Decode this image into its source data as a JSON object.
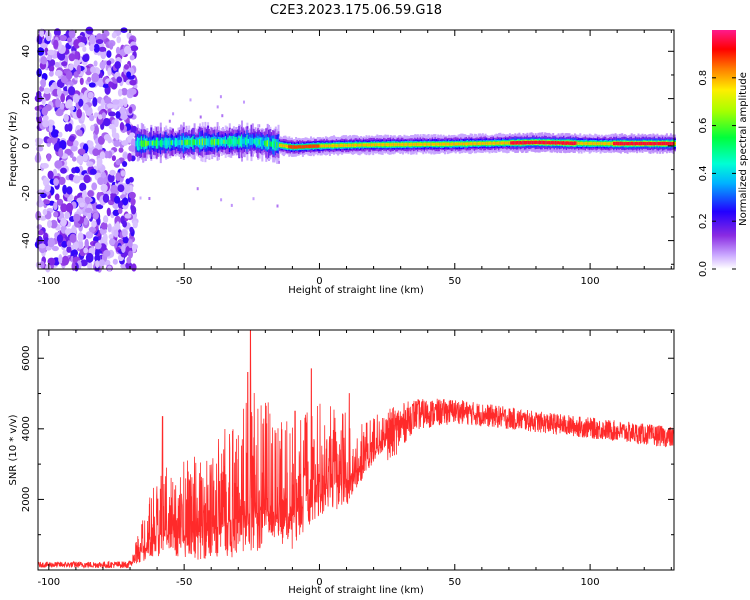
{
  "title": "C2E3.2023.175.06.59.G18",
  "chart_data": [
    {
      "type": "heatmap",
      "xlabel": "Height of straight line (km)",
      "ylabel": "Frequency (Hz)",
      "xlim": [
        -104,
        131
      ],
      "ylim": [
        -52,
        49
      ],
      "xticks": [
        -100,
        -50,
        0,
        50,
        100
      ],
      "yticks": [
        -40,
        -20,
        0,
        20,
        40
      ],
      "colorbar": {
        "label": "Normalized spectral amplitude",
        "range": [
          0,
          1
        ],
        "ticks": [
          0.0,
          0.2,
          0.4,
          0.6,
          0.8
        ],
        "tick_labels": [
          "0.0",
          "0.2",
          "0.4",
          "0.6",
          "0.8"
        ],
        "colormap": [
          "#ffffff",
          "#9b30ff",
          "#0000ff",
          "#00e5ff",
          "#00ff66",
          "#a6ff00",
          "#ffff00",
          "#ff8000",
          "#ff0000",
          "#ff1493"
        ]
      },
      "regions": [
        {
          "x": [
            -104,
            -68
          ],
          "freq_range": [
            -52,
            49
          ],
          "amplitude": "0.0-0.2 scattered"
        },
        {
          "x": [
            -68,
            -15
          ],
          "freq_center": 2,
          "freq_halfwidth": 7,
          "amplitude": "0.2-0.6"
        },
        {
          "x": [
            -15,
            131
          ],
          "freq_center": 1,
          "freq_halfwidth": 3,
          "amplitude": "0.3-0.9"
        }
      ],
      "ridge": [
        {
          "x": -68,
          "f": 1
        },
        {
          "x": -50,
          "f": 1.5
        },
        {
          "x": -25,
          "f": 2
        },
        {
          "x": -10,
          "f": -0.5
        },
        {
          "x": 0,
          "f": 0
        },
        {
          "x": 20,
          "f": 0.5
        },
        {
          "x": 50,
          "f": 0.8
        },
        {
          "x": 80,
          "f": 1.5
        },
        {
          "x": 100,
          "f": 1
        },
        {
          "x": 131,
          "f": 1
        }
      ]
    },
    {
      "type": "line",
      "xlabel": "Height of straight line (km)",
      "ylabel": "SNR (10 * v/v)",
      "xlim": [
        -104,
        131
      ],
      "ylim": [
        0,
        6800
      ],
      "xticks": [
        -100,
        -50,
        0,
        50,
        100
      ],
      "yticks": [
        2000,
        4000,
        6000
      ],
      "color": "#ff2a2a",
      "envelope": [
        {
          "x": -104,
          "base": 150,
          "spread": 80
        },
        {
          "x": -70,
          "base": 150,
          "spread": 100
        },
        {
          "x": -60,
          "base": 1000,
          "spread": 1800
        },
        {
          "x": -40,
          "base": 1100,
          "spread": 2500
        },
        {
          "x": -25,
          "base": 1700,
          "spread": 3500
        },
        {
          "x": -10,
          "base": 1500,
          "spread": 2600
        },
        {
          "x": 0,
          "base": 2400,
          "spread": 2400
        },
        {
          "x": 10,
          "base": 2500,
          "spread": 2000
        },
        {
          "x": 20,
          "base": 3400,
          "spread": 1000
        },
        {
          "x": 35,
          "base": 4400,
          "spread": 450
        },
        {
          "x": 50,
          "base": 4500,
          "spread": 350
        },
        {
          "x": 80,
          "base": 4200,
          "spread": 300
        },
        {
          "x": 131,
          "base": 3750,
          "spread": 300
        }
      ],
      "peaks": [
        {
          "x": -25.5,
          "y": 6800
        },
        {
          "x": -26.5,
          "y": 5600
        },
        {
          "x": -3,
          "y": 5700
        },
        {
          "x": -58,
          "y": 4350
        },
        {
          "x": 11,
          "y": 5000
        },
        {
          "x": -9,
          "y": 4500
        }
      ]
    }
  ]
}
